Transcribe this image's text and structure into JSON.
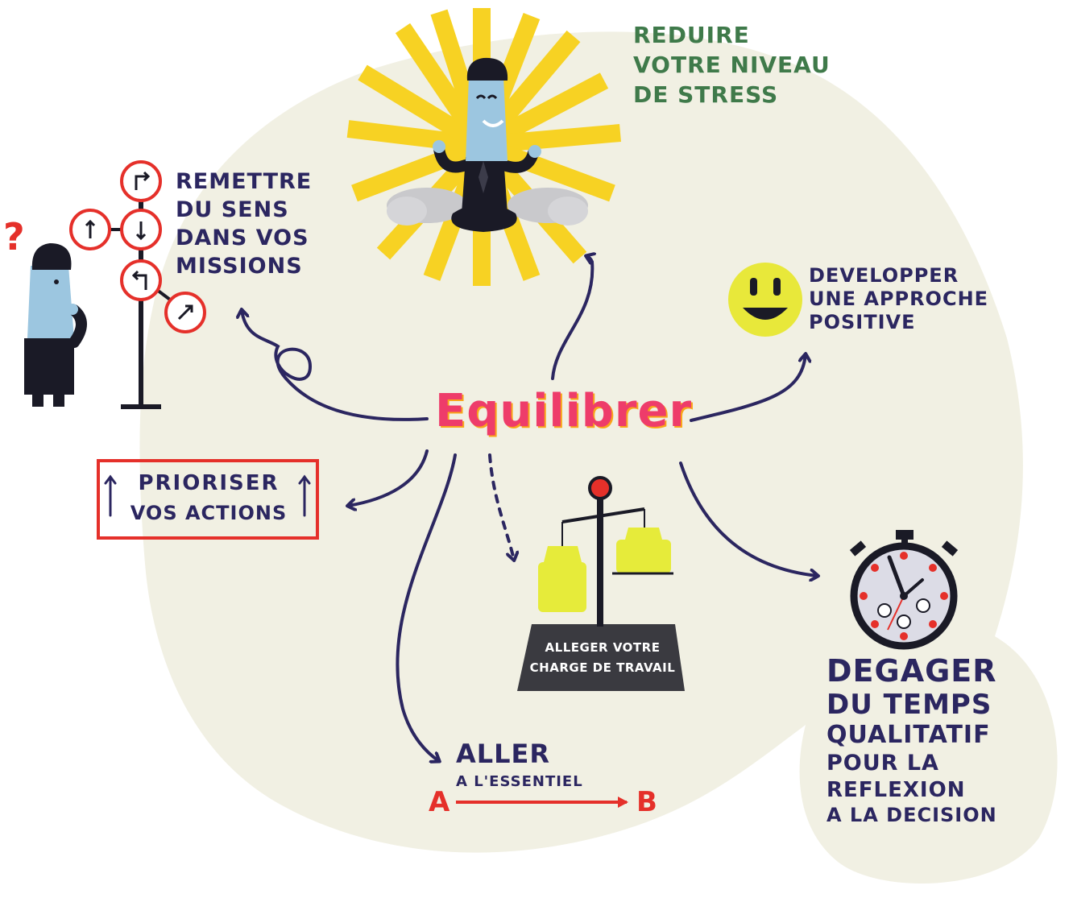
{
  "center": {
    "word": "Equilibrer"
  },
  "branches": {
    "stress": {
      "lines": [
        "Reduire",
        "votre niveau",
        "de stress"
      ]
    },
    "sens": {
      "lines": [
        "Remettre",
        "du sens",
        "dans vos",
        "missions"
      ]
    },
    "positive": {
      "lines": [
        "Developper",
        "une approche",
        "positive"
      ]
    },
    "prioriser": {
      "lines": [
        "Prioriser",
        "vos actions"
      ]
    },
    "alleger": {
      "lines": [
        "Alleger votre",
        "charge de travail"
      ]
    },
    "essentiel": {
      "line1": "Aller",
      "line2": "A l'essentiel",
      "point_a": "A",
      "point_b": "B"
    },
    "temps": {
      "lines": [
        "Degager",
        "du temps",
        "qualitatif",
        "pour la",
        "reflexion",
        "a la decision"
      ]
    }
  },
  "colors": {
    "blob": "#f1f0e3",
    "ink": "#2b2660",
    "accent_red": "#e5302a",
    "title_pink": "#ee3c6a",
    "title_orange": "#f9a61a",
    "sunray": "#f7d223",
    "green_text": "#3f7a4a",
    "weight_yellow": "#e6eb3a",
    "skin_blue": "#9cc6e0",
    "suit": "#1a1a26"
  },
  "icons": [
    "confused-man-icon",
    "signpost-icon",
    "meditating-man-icon",
    "smiley-icon",
    "scale-icon",
    "stopwatch-icon",
    "question-mark-icon"
  ]
}
